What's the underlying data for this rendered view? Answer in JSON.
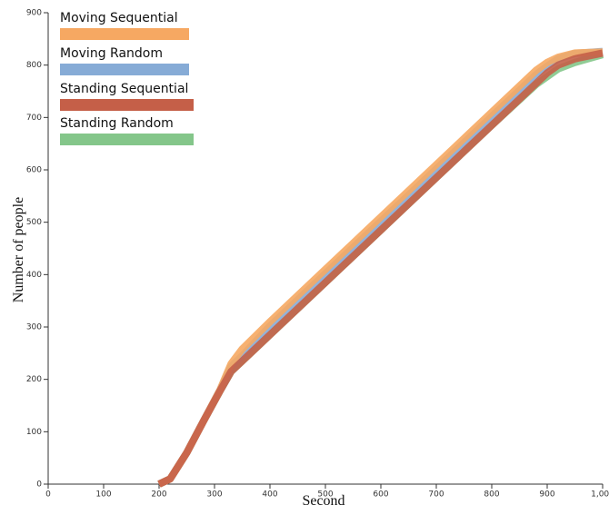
{
  "chart_data": {
    "type": "line",
    "x_label": "Second",
    "y_label": "Number of people",
    "x": [
      200,
      220,
      250,
      280,
      310,
      330,
      350,
      400,
      500,
      600,
      700,
      800,
      880,
      900,
      920,
      950,
      1000
    ],
    "series": [
      {
        "name": "Moving Sequential",
        "color": "#f6a862",
        "values": [
          0,
          10,
          60,
          120,
          180,
          230,
          258,
          310,
          410,
          510,
          610,
          710,
          790,
          805,
          815,
          823,
          825
        ]
      },
      {
        "name": "Moving Random",
        "color": "#86abd6",
        "values": [
          0,
          10,
          60,
          120,
          180,
          225,
          245,
          302,
          402,
          502,
          602,
          702,
          782,
          798,
          812,
          822,
          826
        ]
      },
      {
        "name": "Standing Sequential",
        "color": "#c55f48",
        "values": [
          0,
          10,
          60,
          120,
          178,
          215,
          235,
          285,
          385,
          485,
          585,
          685,
          765,
          785,
          800,
          812,
          823
        ]
      },
      {
        "name": "Standing Random",
        "color": "#84c68a",
        "values": [
          0,
          10,
          60,
          120,
          178,
          215,
          235,
          285,
          385,
          485,
          585,
          685,
          763,
          778,
          793,
          805,
          820
        ]
      }
    ],
    "xlim": [
      0,
      1000
    ],
    "ylim": [
      0,
      900
    ],
    "xticks": [
      0,
      100,
      200,
      300,
      400,
      500,
      600,
      700,
      800,
      900,
      {
        "value": 1000,
        "label": "1,000"
      }
    ],
    "yticks": [
      0,
      100,
      200,
      300,
      400,
      500,
      600,
      700,
      800,
      900
    ]
  }
}
